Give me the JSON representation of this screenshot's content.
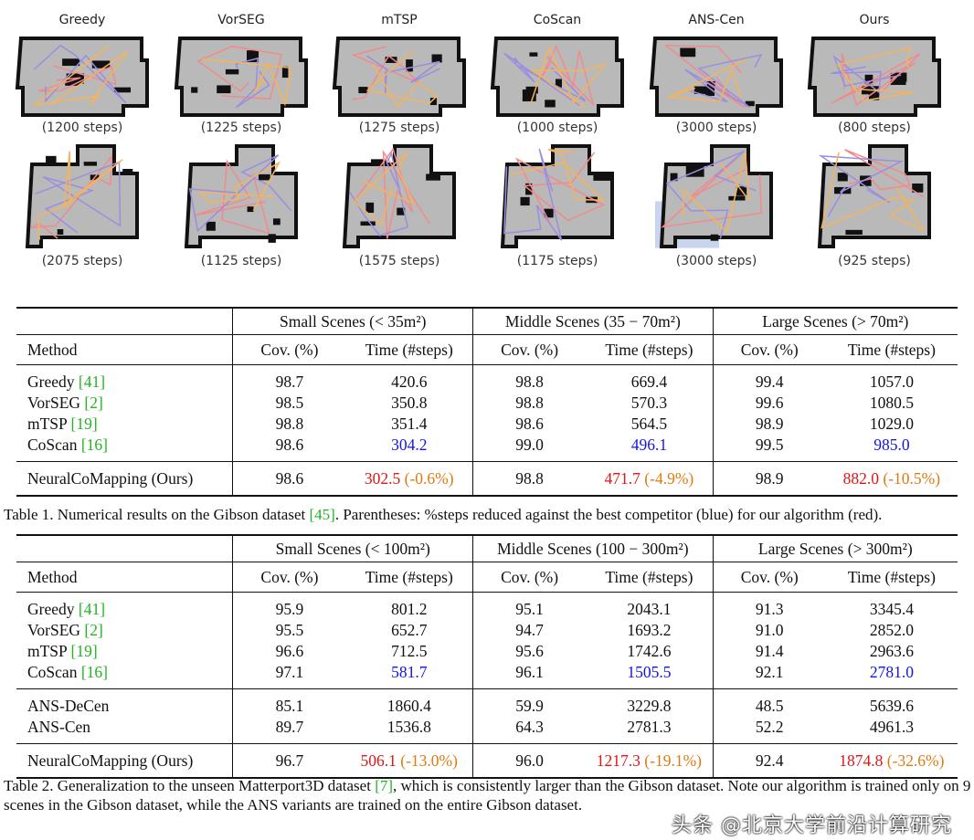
{
  "maps": {
    "methods": [
      "Greedy",
      "VorSEG",
      "mTSP",
      "CoScan",
      "ANS-Cen",
      "Ours"
    ],
    "row1_steps": [
      "(1200 steps)",
      "(1225 steps)",
      "(1275 steps)",
      "(1000 steps)",
      "(3000 steps)",
      "(800 steps)"
    ],
    "row2_steps": [
      "(2075 steps)",
      "(1125 steps)",
      "(1575 steps)",
      "(1175 steps)",
      "(3000 steps)",
      "(925 steps)"
    ],
    "colors": {
      "map": "#b9b9b9",
      "wall": "#111111",
      "path1": "#f28a8a",
      "path2": "#9b8ee0",
      "path3": "#f5b35a",
      "unexplored": "#c9d4ee"
    }
  },
  "table1": {
    "groups": [
      "Small Scenes (< 35m²)",
      "Middle Scenes (35 − 70m²)",
      "Large Scenes (> 70m²)"
    ],
    "header": [
      "Method",
      "Cov. (%)",
      "Time (#steps)",
      "Cov. (%)",
      "Time (#steps)",
      "Cov. (%)",
      "Time (#steps)"
    ],
    "sections": [
      [
        {
          "method": "Greedy ",
          "ref": "[41]",
          "cells": [
            "98.7",
            "420.6",
            "98.8",
            "669.4",
            "99.4",
            "1057.0"
          ]
        },
        {
          "method": "VorSEG ",
          "ref": "[2]",
          "cells": [
            "98.5",
            "350.8",
            "98.8",
            "570.3",
            "99.6",
            "1080.5"
          ]
        },
        {
          "method": "mTSP ",
          "ref": "[19]",
          "cells": [
            "98.8",
            "351.4",
            "98.6",
            "564.5",
            "98.9",
            "1029.0"
          ]
        },
        {
          "method": "CoScan ",
          "ref": "[16]",
          "cells": [
            "98.6",
            "304.2",
            "99.0",
            "496.1",
            "99.5",
            "985.0"
          ],
          "blue": true
        }
      ],
      [
        {
          "method": "NeuralCoMapping (Ours)",
          "ref": "",
          "cells": [
            "98.6",
            "302.5",
            "98.8",
            "471.7",
            "98.9",
            "882.0"
          ],
          "pct": [
            "(-0.6%)",
            "(-4.9%)",
            "(-10.5%)"
          ]
        }
      ]
    ],
    "caption_pre": "Table 1. Numerical results on the Gibson dataset ",
    "caption_ref": "[45]",
    "caption_post": ". Parentheses: %steps reduced against the best competitor (blue) for our algorithm (red)."
  },
  "table2": {
    "groups": [
      "Small Scenes (< 100m²)",
      "Middle Scenes (100 − 300m²)",
      "Large Scenes (> 300m²)"
    ],
    "header": [
      "Method",
      "Cov. (%)",
      "Time (#steps)",
      "Cov. (%)",
      "Time (#steps)",
      "Cov. (%)",
      "Time (#steps)"
    ],
    "sections": [
      [
        {
          "method": "Greedy ",
          "ref": "[41]",
          "cells": [
            "95.9",
            "801.2",
            "95.1",
            "2043.1",
            "91.3",
            "3345.4"
          ]
        },
        {
          "method": "VorSEG ",
          "ref": "[2]",
          "cells": [
            "95.5",
            "652.7",
            "94.7",
            "1693.2",
            "91.0",
            "2852.0"
          ]
        },
        {
          "method": "mTSP ",
          "ref": "[19]",
          "cells": [
            "96.6",
            "712.5",
            "95.6",
            "1742.6",
            "91.4",
            "2963.6"
          ]
        },
        {
          "method": "CoScan ",
          "ref": "[16]",
          "cells": [
            "97.1",
            "581.7",
            "96.1",
            "1505.5",
            "92.1",
            "2781.0"
          ],
          "blue": true
        }
      ],
      [
        {
          "method": "ANS-DeCen",
          "ref": "",
          "cells": [
            "85.1",
            "1860.4",
            "59.9",
            "3229.8",
            "48.5",
            "5639.6"
          ]
        },
        {
          "method": "ANS-Cen",
          "ref": "",
          "cells": [
            "89.7",
            "1536.8",
            "64.3",
            "2781.3",
            "52.2",
            "4961.3"
          ]
        }
      ],
      [
        {
          "method": "NeuralCoMapping (Ours)",
          "ref": "",
          "cells": [
            "96.7",
            "506.1",
            "96.0",
            "1217.3",
            "92.4",
            "1874.8"
          ],
          "pct": [
            "(-13.0%)",
            "(-19.1%)",
            "(-32.6%)"
          ]
        }
      ]
    ],
    "caption_pre": "Table 2. Generalization to the unseen Matterport3D dataset ",
    "caption_ref": "[7]",
    "caption_post": ", which is consistently larger than the Gibson dataset. Note our algorithm is trained only on 9 scenes in the Gibson dataset, while the ANS variants are trained on the entire Gibson dataset."
  },
  "watermark": "头条 @北京大学前沿计算研究",
  "colors": {
    "ref": "#22b422",
    "best_competitor": "#1515e0",
    "ours": "#e01515",
    "percent": "#e07a10"
  }
}
